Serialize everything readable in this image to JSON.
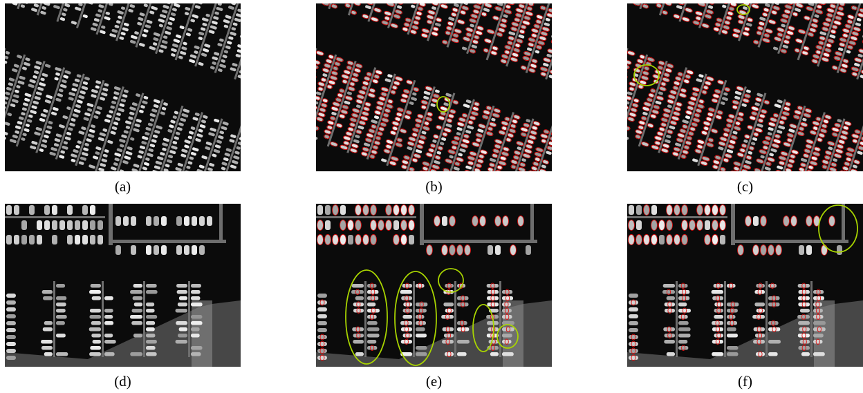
{
  "panels": [
    {
      "id": "a",
      "caption": "(a)",
      "scene": "marina-diagonal",
      "detections": "none",
      "highlights": 0
    },
    {
      "id": "b",
      "caption": "(b)",
      "scene": "marina-diagonal",
      "detections": "red-ellipses",
      "highlights": 1
    },
    {
      "id": "c",
      "caption": "(c)",
      "scene": "marina-diagonal",
      "detections": "red-ellipses",
      "highlights": 2
    },
    {
      "id": "d",
      "caption": "(d)",
      "scene": "harbor-piers",
      "detections": "none",
      "highlights": 0
    },
    {
      "id": "e",
      "caption": "(e)",
      "scene": "harbor-piers",
      "detections": "red-ellipses",
      "highlights": 5
    },
    {
      "id": "f",
      "caption": "(f)",
      "scene": "harbor-piers",
      "detections": "red-ellipses",
      "highlights": 1
    }
  ],
  "colors": {
    "water": "#0b0b0b",
    "boat": "#d8d8d8",
    "dock": "#6e6e6e",
    "detection": "#e01010",
    "highlight": "#a8d400"
  }
}
